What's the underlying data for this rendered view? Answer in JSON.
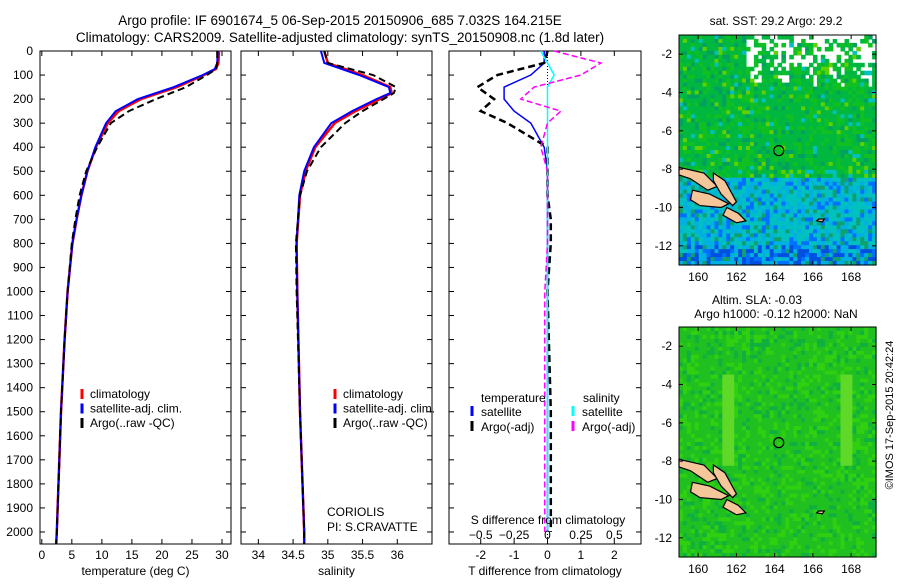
{
  "title": {
    "line1": "Argo profile: IF 6901674_5 06-Sep-2015 20150906_685 7.032S 164.215E",
    "line2": "Climatology: CARS2009. Satellite-adjusted climatology: synTS_20150908.nc (1.8d later)"
  },
  "credit": "©IMOS 17-Sep-2015 20:42:24",
  "colors": {
    "climatology": "#ff0000",
    "satellite": "#0000ff",
    "argo": "#000000",
    "sal_satellite": "#00ffff",
    "sal_argo": "#ff00ff"
  },
  "chart_data": [
    {
      "type": "line",
      "id": "temperature",
      "xlabel": "temperature (deg C)",
      "ylabel": "",
      "xlim": [
        -0.3,
        31.5
      ],
      "ylim": [
        2050,
        0
      ],
      "xticks": [
        0,
        5,
        10,
        15,
        20,
        25,
        30
      ],
      "yticks": [
        0,
        100,
        200,
        300,
        400,
        500,
        600,
        700,
        800,
        900,
        1000,
        1100,
        1200,
        1300,
        1400,
        1500,
        1600,
        1700,
        1800,
        1900,
        2000
      ],
      "depth": [
        0,
        50,
        75,
        100,
        150,
        200,
        250,
        300,
        400,
        500,
        600,
        700,
        800,
        1000,
        1200,
        1500,
        2000,
        2050
      ],
      "series": [
        {
          "name": "climatology",
          "values": [
            29.5,
            29.4,
            29.0,
            27.0,
            22.5,
            16.5,
            12.8,
            11.0,
            9.0,
            7.6,
            6.6,
            5.8,
            5.1,
            4.3,
            3.8,
            3.2,
            2.5,
            2.4
          ]
        },
        {
          "name": "satellite-adj. clim.",
          "values": [
            29.3,
            29.2,
            28.8,
            26.8,
            22.0,
            16.0,
            12.3,
            10.7,
            8.9,
            7.6,
            6.6,
            5.8,
            5.1,
            4.3,
            3.8,
            3.2,
            2.5,
            2.4
          ]
        },
        {
          "name": "Argo(..raw -QC)",
          "values": [
            29.2,
            29.2,
            29.0,
            27.5,
            24.0,
            19.0,
            14.5,
            11.5,
            9.2,
            7.4,
            6.3,
            5.6,
            5.0,
            4.3,
            3.8,
            3.2,
            2.5,
            2.4
          ]
        }
      ],
      "legend": [
        "climatology",
        "satellite-adj. clim.",
        "Argo(..raw -QC)"
      ],
      "legend_position": "lower-center"
    },
    {
      "type": "line",
      "id": "salinity",
      "xlabel": "salinity",
      "xlim": [
        33.75,
        36.5
      ],
      "ylim": [
        2050,
        0
      ],
      "xticks": [
        34,
        34.5,
        35,
        35.5,
        36
      ],
      "depth": [
        0,
        50,
        100,
        150,
        175,
        200,
        250,
        300,
        400,
        500,
        600,
        800,
        1000,
        1500,
        2000,
        2050
      ],
      "series": [
        {
          "name": "climatology",
          "values": [
            34.95,
            35.0,
            35.5,
            35.9,
            35.92,
            35.75,
            35.4,
            35.1,
            34.82,
            34.68,
            34.6,
            34.55,
            34.56,
            34.6,
            34.66,
            34.66
          ]
        },
        {
          "name": "satellite-adj. clim.",
          "values": [
            34.9,
            34.95,
            35.45,
            35.88,
            35.9,
            35.7,
            35.35,
            35.05,
            34.8,
            34.66,
            34.59,
            34.55,
            34.56,
            34.6,
            34.66,
            34.66
          ]
        },
        {
          "name": "Argo(..raw -QC)",
          "values": [
            34.95,
            35.0,
            35.65,
            35.98,
            35.95,
            35.8,
            35.5,
            35.25,
            34.9,
            34.7,
            34.6,
            34.54,
            34.55,
            34.6,
            34.66,
            34.66
          ]
        }
      ],
      "legend": [
        "climatology",
        "satellite-adj. clim.",
        "Argo(..raw -QC)"
      ],
      "annotations": [
        "CORIOLIS",
        "PI: S.CRAVATTE"
      ]
    },
    {
      "type": "line",
      "id": "differences",
      "xlabel": "T difference from climatology",
      "x2label": "S difference from climatology",
      "xlim": [
        -2.95,
        2.8
      ],
      "xticks": [
        -2,
        -1,
        0,
        1,
        2
      ],
      "x2ticks": [
        "-0.5",
        "-0.25",
        "0",
        "0.25",
        "0.5"
      ],
      "ylim": [
        2050,
        0
      ],
      "depth": [
        0,
        50,
        100,
        150,
        200,
        250,
        300,
        400,
        500,
        600,
        700,
        800,
        1000,
        1500,
        2000
      ],
      "series": [
        {
          "name": "temperature satellite",
          "values": [
            -0.1,
            -0.1,
            -0.5,
            -1.3,
            -1.3,
            -1.0,
            -0.5,
            -0.1,
            0.0,
            0.0,
            0.0,
            0.0,
            0.0,
            0.0,
            0.0
          ]
        },
        {
          "name": "temperature Argo(-adj)",
          "values": [
            0.0,
            -0.1,
            -1.5,
            -2.1,
            -1.6,
            -2.0,
            -1.2,
            0.0,
            0.0,
            0.0,
            0.1,
            0.1,
            0.0,
            0.1,
            0.1
          ]
        },
        {
          "name": "salinity satellite",
          "values": [
            -0.05,
            0.0,
            0.05,
            0.0,
            0.0,
            0.0,
            0.0,
            0.0,
            0.0,
            0.0,
            0.0,
            0.0,
            0.0,
            0.0,
            0.0
          ]
        },
        {
          "name": "salinity Argo(-adj)",
          "values": [
            0.05,
            0.4,
            0.25,
            -0.1,
            -0.2,
            0.1,
            0.0,
            -0.05,
            0.0,
            0.0,
            0.0,
            0.0,
            -0.02,
            -0.02,
            -0.02
          ]
        }
      ],
      "legend": {
        "temperature_header": "temperature",
        "salinity_header": "salinity",
        "satellite": "satellite",
        "argo": "Argo(-adj)"
      }
    },
    {
      "type": "heatmap",
      "id": "sst-map",
      "title": "sat. SST: 29.2 Argo: 29.2",
      "xlim": [
        159,
        169.3
      ],
      "ylim": [
        -13,
        -1
      ],
      "xticks": [
        160,
        162,
        164,
        166,
        168
      ],
      "yticks": [
        -2,
        -4,
        -6,
        -8,
        -10,
        -12
      ],
      "marker": {
        "lon": 164.215,
        "lat": -7.032
      }
    },
    {
      "type": "heatmap",
      "id": "sla-map",
      "title": "Altim. SLA: -0.03",
      "subtitle": "Argo h1000: -0.12 h2000: NaN",
      "xlim": [
        159,
        169.3
      ],
      "ylim": [
        -13,
        -1
      ],
      "xticks": [
        160,
        162,
        164,
        166,
        168
      ],
      "yticks": [
        -2,
        -4,
        -6,
        -8,
        -10,
        -12
      ],
      "marker": {
        "lon": 164.215,
        "lat": -7.032
      }
    }
  ]
}
